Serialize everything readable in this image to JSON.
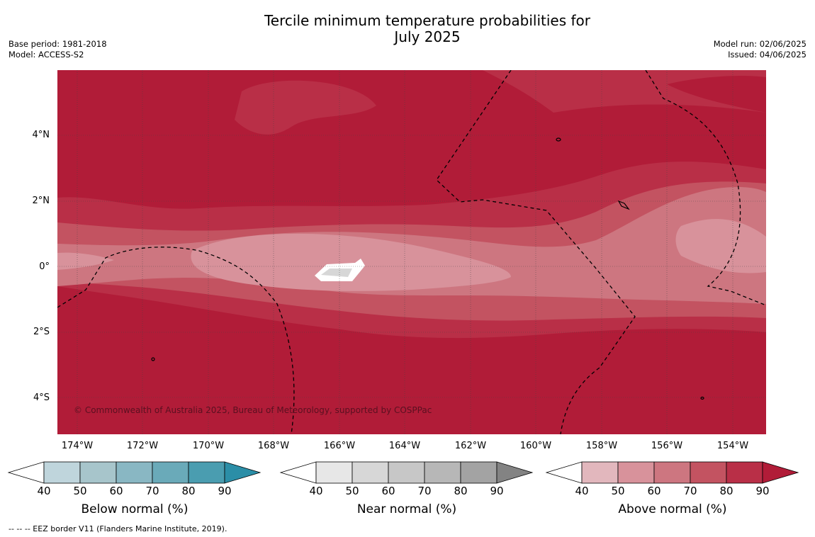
{
  "title_line1": "Tercile minimum temperature probabilities for",
  "title_line2": "July 2025",
  "base_period": "Base period: 1981-2018",
  "model": "Model: ACCESS-S2",
  "model_run": "Model run: 02/06/2025",
  "issued": "Issued: 04/06/2025",
  "lat_labels": [
    "4°N",
    "2°N",
    "0°",
    "2°S",
    "4°S"
  ],
  "lon_labels": [
    "174°W",
    "172°W",
    "170°W",
    "168°W",
    "166°W",
    "164°W",
    "162°W",
    "160°W",
    "158°W",
    "156°W",
    "154°W"
  ],
  "copyright": "© Commonwealth of Australia 2025, Bureau of Meteorology, supported by COSPPac",
  "colorbars": [
    {
      "title": "Below normal (%)",
      "ticks": [
        "40",
        "50",
        "60",
        "70",
        "80",
        "90"
      ],
      "colors": [
        "#ffffff",
        "#bfd5dc",
        "#a7c5cb",
        "#89b7c3",
        "#6aaab9",
        "#4a9db0",
        "#2b8ea7"
      ]
    },
    {
      "title": "Near normal (%)",
      "ticks": [
        "40",
        "50",
        "60",
        "70",
        "80",
        "90"
      ],
      "colors": [
        "#ffffff",
        "#e7e7e7",
        "#d7d7d7",
        "#c7c7c7",
        "#b7b7b7",
        "#a3a3a3",
        "#838383"
      ]
    },
    {
      "title": "Above normal (%)",
      "ticks": [
        "40",
        "50",
        "60",
        "70",
        "80",
        "90"
      ],
      "colors": [
        "#ffffff",
        "#e2b7bd",
        "#d8929b",
        "#cd7680",
        "#c35361",
        "#b92f47",
        "#b11c38"
      ]
    }
  ],
  "footer": "--  --  -- EEZ border V11 (Flanders Marine Institute, 2019)."
}
